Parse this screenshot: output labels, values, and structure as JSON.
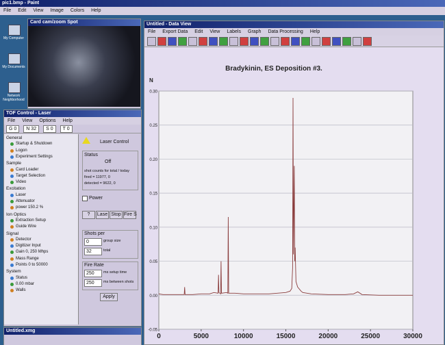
{
  "paint": {
    "title": "pic1.bmp - Paint",
    "menu": [
      "File",
      "Edit",
      "View",
      "Image",
      "Colors",
      "Help"
    ]
  },
  "desktop_icons": [
    "My Computer",
    "My Documents",
    "Network Neighborhood"
  ],
  "camera": {
    "title": "Card cam/zoom Spot"
  },
  "tof": {
    "title": "TOF Control - Laser",
    "menu": [
      "File",
      "View",
      "Options",
      "Help"
    ],
    "toolbar": [
      "G 0",
      "N 32",
      "S 0",
      "T 0"
    ],
    "tree": [
      {
        "group": "General",
        "items": [
          "Startup & Shutdown",
          "Logon",
          "Experiment Settings"
        ]
      },
      {
        "group": "Sample",
        "items": [
          "Card Loader",
          "Target Selection",
          "Video"
        ]
      },
      {
        "group": "Excitation",
        "items": [
          "Laser",
          "Attenuator",
          "power 150.2 %"
        ]
      },
      {
        "group": "Ion Optics",
        "items": [
          "Extraction Setup",
          "Guide Wire"
        ]
      },
      {
        "group": "Signal",
        "items": [
          "Detector",
          "Digitizer Input",
          "Gain 0, 250 Mhps",
          "Mass Range",
          "Points 0 to 50000"
        ]
      },
      {
        "group": "System",
        "items": [
          "Status",
          "0.00 mbar",
          "Walls"
        ]
      }
    ]
  },
  "laser": {
    "title": "Laser Control",
    "status_label": "Status",
    "status": "Off",
    "counts_caption": "shot counts for total / today",
    "fired": "fired = 11977,  0",
    "detected": "detected = 9622,  0",
    "power": "Power",
    "buttons": [
      "?",
      "Lase",
      "Stop",
      "Fire S"
    ],
    "shots_title": "Shots per",
    "group_value": "0",
    "group_label": "group size",
    "total_value": "32",
    "total_label": "total",
    "rate_title": "Fire Rate",
    "setup_value": "250",
    "setup_label": "ms setup time",
    "between_value": "250",
    "between_label": "ms between shots",
    "apply": "Apply"
  },
  "dataview": {
    "title": "Untitled - Data View",
    "menu": [
      "File",
      "Export Data",
      "Edit",
      "View",
      "Labels",
      "Graph",
      "Data Processing",
      "Help"
    ]
  },
  "taskbar": {
    "item": "Untitled.xmg"
  },
  "chart_data": {
    "type": "line",
    "title": "Bradykinin, ES Deposition #3.",
    "ylabel": "N",
    "color": "#8a3c3c",
    "grid": true,
    "x": [
      0,
      500,
      1000,
      2000,
      3000,
      3050,
      3100,
      4000,
      5000,
      6000,
      6500,
      7000,
      7050,
      7100,
      7300,
      7350,
      7400,
      8000,
      8150,
      8200,
      8250,
      9000,
      10000,
      11000,
      12000,
      13000,
      14000,
      15000,
      15500,
      15700,
      15800,
      15850,
      15900,
      16000,
      16050,
      16100,
      16200,
      16400,
      16800,
      17000,
      18000,
      20000,
      22000,
      23000,
      23500,
      24000,
      26000,
      28000,
      30000
    ],
    "values": [
      0.002,
      0.001,
      0.001,
      0.001,
      0.001,
      0.012,
      0.001,
      0.001,
      0.002,
      0.002,
      0.004,
      0.003,
      0.03,
      0.004,
      0.002,
      0.05,
      0.003,
      0.004,
      0.003,
      0.115,
      0.003,
      0.003,
      0.002,
      0.002,
      0.002,
      0.002,
      0.003,
      0.004,
      0.006,
      0.01,
      0.04,
      0.29,
      0.06,
      0.19,
      0.05,
      0.07,
      0.02,
      0.012,
      0.006,
      0.004,
      0.002,
      0.001,
      0.001,
      0.002,
      0.005,
      0.001,
      0,
      0,
      0
    ],
    "xlim": [
      0,
      30000
    ],
    "xticks": [
      0,
      5000,
      10000,
      15000,
      20000,
      25000,
      30000
    ],
    "ylim": [
      -0.05,
      0.3
    ],
    "yticks": [
      -0.05,
      {
        "value": 0,
        "label": "0.00"
      },
      0.05,
      {
        "value": 0.1,
        "label": "0.10"
      },
      0.15,
      {
        "value": 0.2,
        "label": "0.20"
      },
      0.25,
      {
        "value": 0.3,
        "label": "0.30"
      }
    ]
  }
}
